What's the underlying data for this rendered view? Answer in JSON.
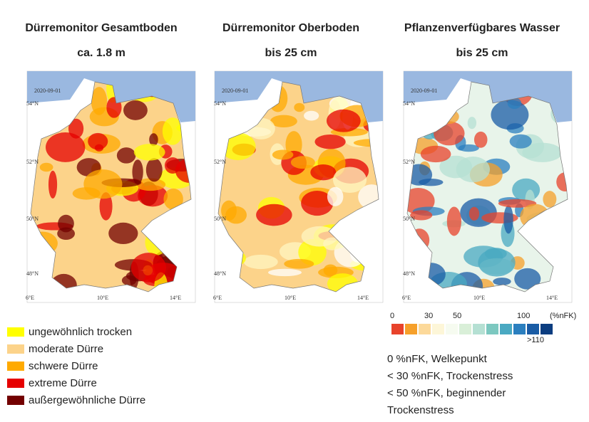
{
  "panels": [
    {
      "title": "Dürremonitor Gesamtboden",
      "subtitle": "ca. 1.8 m",
      "date": "2020-09-01"
    },
    {
      "title": "Dürremonitor Oberboden",
      "subtitle": "bis 25 cm",
      "date": "2020-09-01"
    },
    {
      "title": "Pflanzenverfügbares Wasser",
      "subtitle": "bis 25 cm",
      "date": "2020-09-01"
    }
  ],
  "axes": {
    "lat_labels": [
      "54°N",
      "52°N",
      "50°N",
      "48°N"
    ],
    "lon_labels": [
      "6°E",
      "10°E",
      "14°E"
    ]
  },
  "drought_legend": [
    {
      "label": "ungewöhnlich trocken",
      "color": "#ffff00"
    },
    {
      "label": "moderate Dürre",
      "color": "#fcd38a"
    },
    {
      "label": "schwere Dürre",
      "color": "#ffaa00"
    },
    {
      "label": "extreme Dürre",
      "color": "#e60000"
    },
    {
      "label": "außergewöhnliche Dürre",
      "color": "#730000"
    }
  ],
  "water_scale": {
    "colors": [
      "#e8432b",
      "#f6a02a",
      "#fcd99a",
      "#fdf6d8",
      "#f6fbf0",
      "#d9efd8",
      "#b5e0d3",
      "#7cc8c0",
      "#4aa9c2",
      "#2b7fbf",
      "#1a5ca5",
      "#0c3d80"
    ],
    "labels": [
      "0",
      "30",
      "50",
      "100",
      "(%nFK)",
      ">110"
    ]
  },
  "notes": [
    "0 %nFK, Welkepunkt",
    "< 30 %nFK, Trockenstress",
    "< 50 %nFK, beginnender Trockenstress"
  ]
}
